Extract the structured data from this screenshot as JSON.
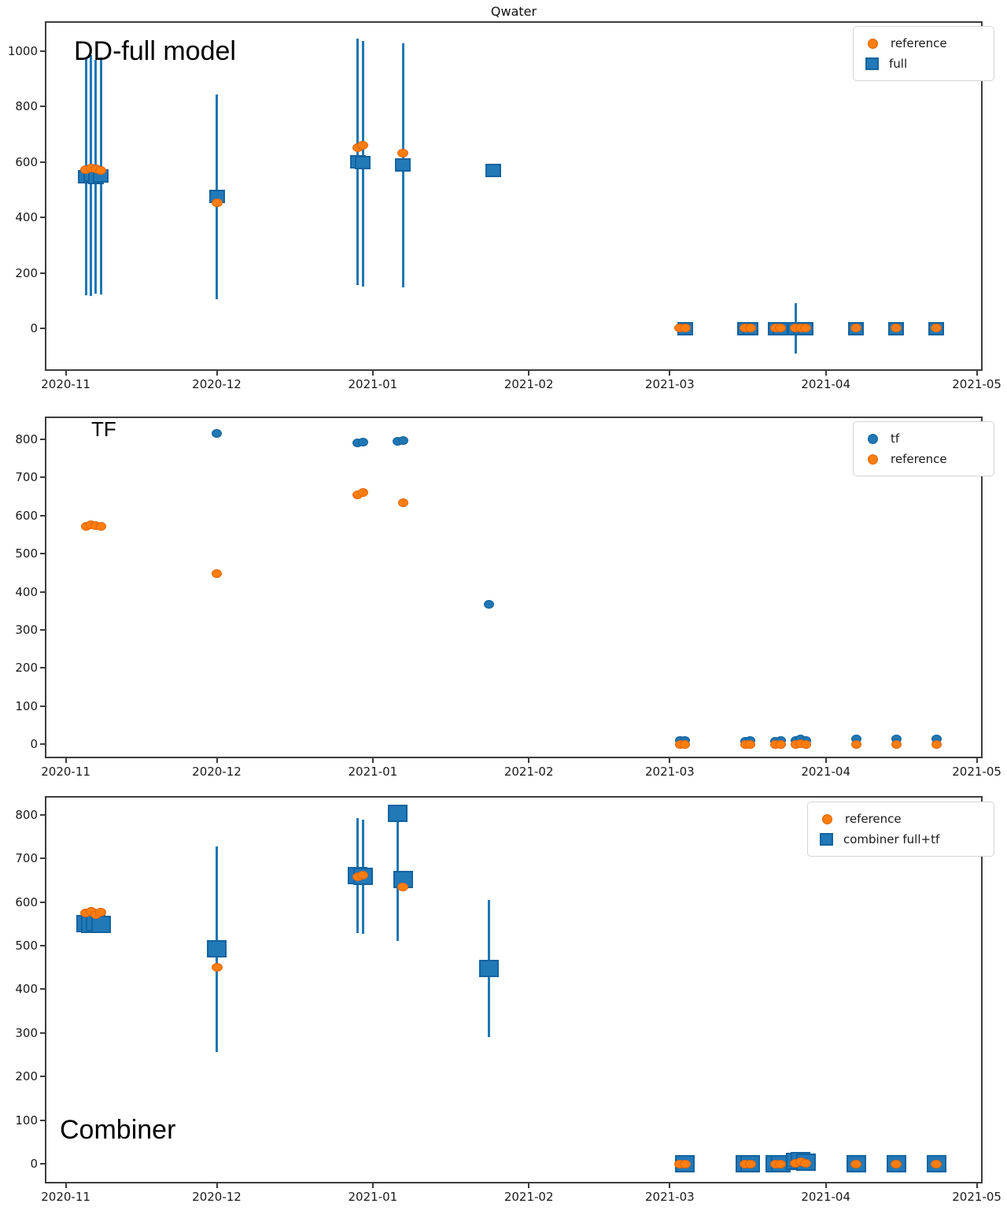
{
  "figure": {
    "title": "Qwater"
  },
  "colors": {
    "blue": "#1f77b4",
    "blue_fill": "#2179b8",
    "blue_edge": "#14639f",
    "orange": "#fd7d0e",
    "orange_edge": "#e0660a",
    "spine": "#3d3d3d"
  },
  "x_axis": {
    "tick_labels": [
      "2020-11",
      "2020-12",
      "2021-01",
      "2021-02",
      "2021-03",
      "2021-04",
      "2021-05"
    ],
    "tick_dates": [
      "2020-11-01",
      "2020-12-01",
      "2021-01-01",
      "2021-02-01",
      "2021-03-01",
      "2021-04-01",
      "2021-05-01"
    ],
    "xlim_dates": [
      "2020-10-28",
      "2021-05-02"
    ]
  },
  "chart_data": [
    {
      "id": "dd-full",
      "type": "scatter",
      "annotation": "DD-full model",
      "yticks": [
        0,
        200,
        400,
        600,
        800,
        1000
      ],
      "ylim": [
        -150,
        1105
      ],
      "legend": [
        {
          "label": "reference",
          "marker": "circle",
          "color": "orange"
        },
        {
          "label": "full",
          "marker": "square",
          "color": "blue"
        }
      ],
      "series": [
        {
          "name": "full",
          "marker": "square",
          "color": "blue",
          "points": [
            {
              "date": "2020-11-05",
              "value": 548,
              "lo": 120,
              "hi": 975
            },
            {
              "date": "2020-11-06",
              "value": 552,
              "lo": 118,
              "hi": 985
            },
            {
              "date": "2020-11-07",
              "value": 545,
              "lo": 125,
              "hi": 968
            },
            {
              "date": "2020-11-08",
              "value": 550,
              "lo": 122,
              "hi": 978
            },
            {
              "date": "2020-12-01",
              "value": 477,
              "lo": 105,
              "hi": 843
            },
            {
              "date": "2020-12-29",
              "value": 600,
              "lo": 158,
              "hi": 1046
            },
            {
              "date": "2020-12-30",
              "value": 597,
              "lo": 152,
              "hi": 1038
            },
            {
              "date": "2021-01-07",
              "value": 590,
              "lo": 147,
              "hi": 1028
            },
            {
              "date": "2021-01-25",
              "value": 570
            },
            {
              "date": "2021-03-04",
              "value": 0
            },
            {
              "date": "2021-03-16",
              "value": 0
            },
            {
              "date": "2021-03-17",
              "value": 0
            },
            {
              "date": "2021-03-22",
              "value": 0
            },
            {
              "date": "2021-03-23",
              "value": 0
            },
            {
              "date": "2021-03-26",
              "value": 0,
              "lo": -90,
              "hi": 92
            },
            {
              "date": "2021-03-27",
              "value": 0
            },
            {
              "date": "2021-03-28",
              "value": 0
            },
            {
              "date": "2021-04-07",
              "value": 0
            },
            {
              "date": "2021-04-15",
              "value": 0
            },
            {
              "date": "2021-04-23",
              "value": 0
            }
          ]
        },
        {
          "name": "reference",
          "marker": "circle",
          "color": "orange",
          "points": [
            {
              "date": "2020-11-05",
              "value": 573
            },
            {
              "date": "2020-11-06",
              "value": 578
            },
            {
              "date": "2020-11-07",
              "value": 575
            },
            {
              "date": "2020-11-08",
              "value": 570
            },
            {
              "date": "2020-12-01",
              "value": 452
            },
            {
              "date": "2020-12-29",
              "value": 653
            },
            {
              "date": "2020-12-30",
              "value": 660
            },
            {
              "date": "2021-01-07",
              "value": 632
            },
            {
              "date": "2021-03-03",
              "value": 2
            },
            {
              "date": "2021-03-04",
              "value": 2
            },
            {
              "date": "2021-03-16",
              "value": 2
            },
            {
              "date": "2021-03-17",
              "value": 2
            },
            {
              "date": "2021-03-22",
              "value": 2
            },
            {
              "date": "2021-03-23",
              "value": 2
            },
            {
              "date": "2021-03-26",
              "value": 2
            },
            {
              "date": "2021-03-27",
              "value": 2
            },
            {
              "date": "2021-03-28",
              "value": 2
            },
            {
              "date": "2021-04-07",
              "value": 2
            },
            {
              "date": "2021-04-15",
              "value": 2
            },
            {
              "date": "2021-04-23",
              "value": 2
            }
          ]
        }
      ]
    },
    {
      "id": "tf",
      "type": "scatter",
      "annotation": "TF",
      "yticks": [
        0,
        100,
        200,
        300,
        400,
        500,
        600,
        700,
        800
      ],
      "ylim": [
        -35,
        858
      ],
      "legend": [
        {
          "label": "tf",
          "marker": "circle",
          "color": "blue"
        },
        {
          "label": "reference",
          "marker": "circle",
          "color": "orange"
        }
      ],
      "series": [
        {
          "name": "tf",
          "marker": "circle",
          "color": "blue",
          "points": [
            {
              "date": "2020-12-01",
              "value": 815
            },
            {
              "date": "2020-12-29",
              "value": 790
            },
            {
              "date": "2020-12-30",
              "value": 793
            },
            {
              "date": "2021-01-06",
              "value": 795
            },
            {
              "date": "2021-01-07",
              "value": 797
            },
            {
              "date": "2021-01-24",
              "value": 367
            },
            {
              "date": "2021-03-03",
              "value": 10
            },
            {
              "date": "2021-03-04",
              "value": 9
            },
            {
              "date": "2021-03-16",
              "value": 8
            },
            {
              "date": "2021-03-17",
              "value": 9
            },
            {
              "date": "2021-03-22",
              "value": 8
            },
            {
              "date": "2021-03-23",
              "value": 9
            },
            {
              "date": "2021-03-26",
              "value": 10
            },
            {
              "date": "2021-03-27",
              "value": 13
            },
            {
              "date": "2021-03-28",
              "value": 10
            },
            {
              "date": "2021-04-07",
              "value": 13
            },
            {
              "date": "2021-04-15",
              "value": 13
            },
            {
              "date": "2021-04-23",
              "value": 13
            }
          ]
        },
        {
          "name": "reference",
          "marker": "circle",
          "color": "orange",
          "points": [
            {
              "date": "2020-11-05",
              "value": 572
            },
            {
              "date": "2020-11-06",
              "value": 576
            },
            {
              "date": "2020-11-07",
              "value": 574
            },
            {
              "date": "2020-11-08",
              "value": 571
            },
            {
              "date": "2020-12-01",
              "value": 448
            },
            {
              "date": "2020-12-29",
              "value": 655
            },
            {
              "date": "2020-12-30",
              "value": 661
            },
            {
              "date": "2021-01-07",
              "value": 633
            },
            {
              "date": "2021-03-03",
              "value": 0
            },
            {
              "date": "2021-03-04",
              "value": 0
            },
            {
              "date": "2021-03-16",
              "value": 0
            },
            {
              "date": "2021-03-17",
              "value": 0
            },
            {
              "date": "2021-03-22",
              "value": 0
            },
            {
              "date": "2021-03-23",
              "value": 0
            },
            {
              "date": "2021-03-26",
              "value": 0
            },
            {
              "date": "2021-03-27",
              "value": 2
            },
            {
              "date": "2021-03-28",
              "value": 0
            },
            {
              "date": "2021-04-07",
              "value": 0
            },
            {
              "date": "2021-04-15",
              "value": 0
            },
            {
              "date": "2021-04-23",
              "value": 0
            }
          ]
        }
      ]
    },
    {
      "id": "combiner",
      "type": "scatter",
      "annotation": "Combiner",
      "yticks": [
        0,
        100,
        200,
        300,
        400,
        500,
        600,
        700,
        800
      ],
      "ylim": [
        -43,
        841
      ],
      "legend": [
        {
          "label": "reference",
          "marker": "circle",
          "color": "orange"
        },
        {
          "label": "combiner full+tf",
          "marker": "square",
          "color": "blue"
        }
      ],
      "series": [
        {
          "name": "combiner full+tf",
          "marker": "square",
          "color": "blue",
          "points": [
            {
              "date": "2020-11-05",
              "value": 550
            },
            {
              "date": "2020-11-06",
              "value": 548
            },
            {
              "date": "2020-11-07",
              "value": 552
            },
            {
              "date": "2020-11-08",
              "value": 549
            },
            {
              "date": "2020-12-01",
              "value": 492,
              "lo": 257,
              "hi": 728
            },
            {
              "date": "2020-12-29",
              "value": 661,
              "lo": 529,
              "hi": 792
            },
            {
              "date": "2020-12-30",
              "value": 659,
              "lo": 527,
              "hi": 789
            },
            {
              "date": "2021-01-06",
              "value": 803,
              "lo": 511,
              "hi": 808
            },
            {
              "date": "2021-01-07",
              "value": 652
            },
            {
              "date": "2021-01-24",
              "value": 448,
              "lo": 290,
              "hi": 604
            },
            {
              "date": "2021-03-04",
              "value": 0
            },
            {
              "date": "2021-03-16",
              "value": 0
            },
            {
              "date": "2021-03-17",
              "value": 0
            },
            {
              "date": "2021-03-22",
              "value": 0
            },
            {
              "date": "2021-03-23",
              "value": 0
            },
            {
              "date": "2021-03-26",
              "value": 5
            },
            {
              "date": "2021-03-27",
              "value": 8
            },
            {
              "date": "2021-03-28",
              "value": 4
            },
            {
              "date": "2021-04-07",
              "value": 0
            },
            {
              "date": "2021-04-15",
              "value": 0
            },
            {
              "date": "2021-04-23",
              "value": 0
            }
          ]
        },
        {
          "name": "reference",
          "marker": "circle",
          "color": "orange",
          "points": [
            {
              "date": "2020-11-05",
              "value": 574
            },
            {
              "date": "2020-11-06",
              "value": 578
            },
            {
              "date": "2020-11-07",
              "value": 572
            },
            {
              "date": "2020-11-08",
              "value": 576
            },
            {
              "date": "2020-12-01",
              "value": 450
            },
            {
              "date": "2020-12-29",
              "value": 658
            },
            {
              "date": "2020-12-30",
              "value": 662
            },
            {
              "date": "2021-01-07",
              "value": 634
            },
            {
              "date": "2021-03-03",
              "value": 0
            },
            {
              "date": "2021-03-04",
              "value": 0
            },
            {
              "date": "2021-03-16",
              "value": 0
            },
            {
              "date": "2021-03-17",
              "value": 0
            },
            {
              "date": "2021-03-22",
              "value": 0
            },
            {
              "date": "2021-03-23",
              "value": 0
            },
            {
              "date": "2021-03-26",
              "value": 2
            },
            {
              "date": "2021-03-27",
              "value": 5
            },
            {
              "date": "2021-03-28",
              "value": 2
            },
            {
              "date": "2021-04-07",
              "value": 0
            },
            {
              "date": "2021-04-15",
              "value": 0
            },
            {
              "date": "2021-04-23",
              "value": 0
            }
          ]
        }
      ]
    }
  ]
}
